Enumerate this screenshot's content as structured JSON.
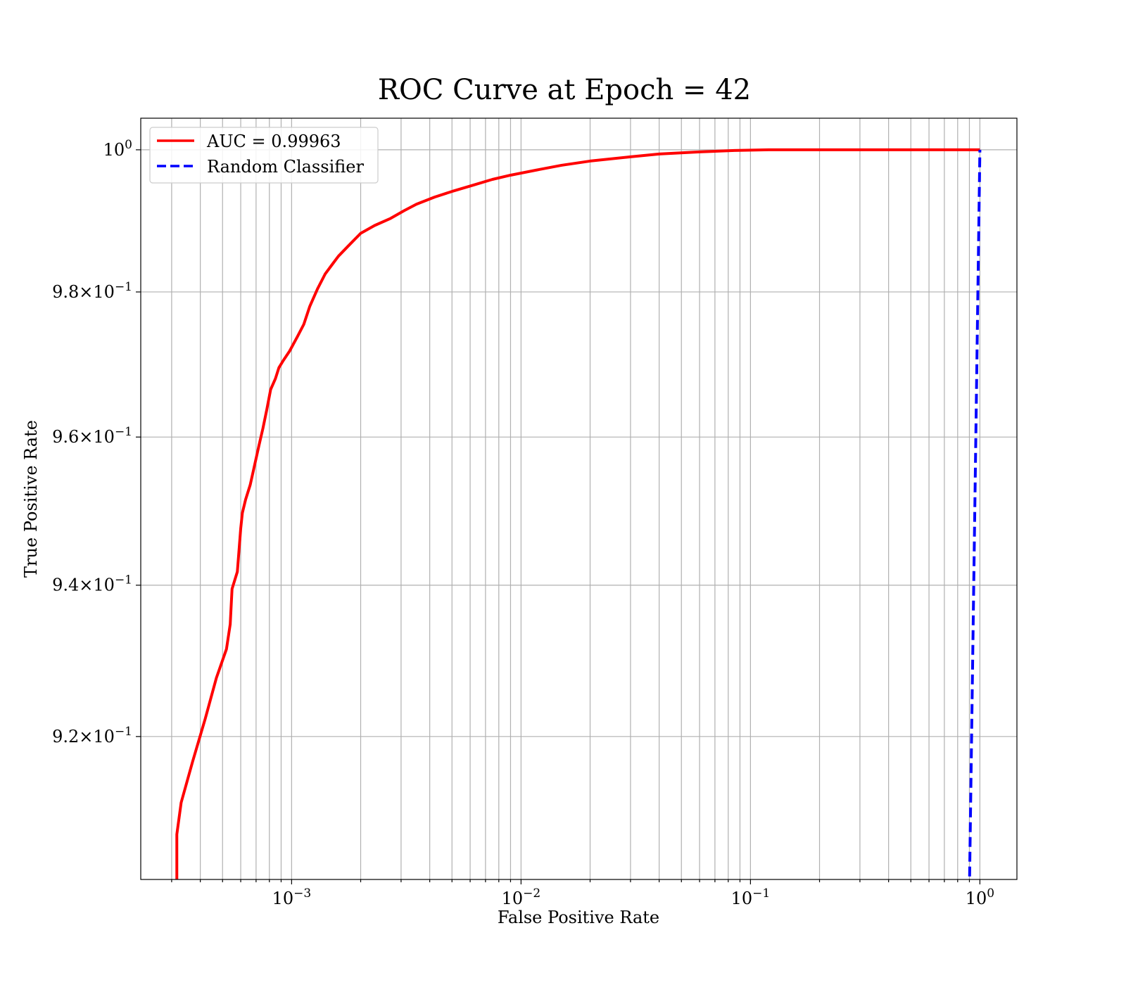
{
  "chart_data": {
    "type": "line",
    "title": "ROC Curve at Epoch = 42",
    "xlabel": "False Positive Rate",
    "ylabel": "True Positive Rate",
    "xscale": "log",
    "yscale": "log",
    "xlim": [
      0.00022,
      1.45
    ],
    "ylim": [
      0.9015,
      1.0045
    ],
    "grid": true,
    "grid_which": "both",
    "legend_position": "top-left",
    "x_ticks": [
      {
        "value": 0.001,
        "base": "10",
        "exp": "−3"
      },
      {
        "value": 0.01,
        "base": "10",
        "exp": "−2"
      },
      {
        "value": 0.1,
        "base": "10",
        "exp": "−1"
      },
      {
        "value": 1,
        "base": "10",
        "exp": "0"
      }
    ],
    "y_ticks": [
      {
        "value": 0.92,
        "mant": "9.2",
        "base": "10",
        "exp": "−1"
      },
      {
        "value": 0.94,
        "mant": "9.4",
        "base": "10",
        "exp": "−1"
      },
      {
        "value": 0.96,
        "mant": "9.6",
        "base": "10",
        "exp": "−1"
      },
      {
        "value": 0.98,
        "mant": "9.8",
        "base": "10",
        "exp": "−1"
      },
      {
        "value": 1.0,
        "mant": "",
        "base": "10",
        "exp": "0"
      }
    ],
    "series": [
      {
        "name": "AUC = 0.99963",
        "color": "#ff0000",
        "style": "solid",
        "x": [
          0.000316,
          0.000316,
          0.00033,
          0.00037,
          0.00042,
          0.00047,
          0.00052,
          0.00054,
          0.00055,
          0.00058,
          0.0006,
          0.00061,
          0.00063,
          0.00066,
          0.00069,
          0.00072,
          0.00075,
          0.00078,
          0.00081,
          0.00085,
          0.00088,
          0.00092,
          0.00098,
          0.00106,
          0.00113,
          0.0012,
          0.0013,
          0.0014,
          0.0015,
          0.0016,
          0.0018,
          0.002,
          0.0023,
          0.0027,
          0.0031,
          0.0035,
          0.0042,
          0.005,
          0.0062,
          0.0075,
          0.009,
          0.012,
          0.015,
          0.02,
          0.03,
          0.04,
          0.06,
          0.085,
          0.12,
          0.2,
          0.4,
          0.7,
          1.0
        ],
        "y": [
          0.9015,
          0.9073,
          0.9114,
          0.9167,
          0.9223,
          0.9277,
          0.9315,
          0.9348,
          0.9395,
          0.9418,
          0.9476,
          0.9497,
          0.9515,
          0.9535,
          0.9562,
          0.9588,
          0.9612,
          0.9638,
          0.9665,
          0.968,
          0.9695,
          0.9705,
          0.9718,
          0.9738,
          0.9755,
          0.978,
          0.9805,
          0.9825,
          0.9838,
          0.985,
          0.9867,
          0.9882,
          0.9893,
          0.9903,
          0.9914,
          0.9923,
          0.9933,
          0.9941,
          0.995,
          0.9958,
          0.9964,
          0.9972,
          0.9978,
          0.9984,
          0.999,
          0.9994,
          0.9997,
          0.9999,
          1.0,
          1.0,
          1.0,
          1.0,
          1.0
        ]
      },
      {
        "name": "Random Classifier",
        "color": "#0000ff",
        "style": "dashed",
        "x": [
          0.9,
          1.0
        ],
        "y": [
          0.9,
          1.0
        ]
      }
    ]
  }
}
